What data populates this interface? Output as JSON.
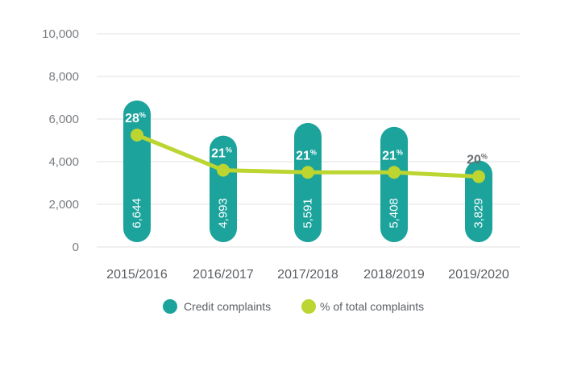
{
  "chart_data": {
    "type": "bar",
    "categories": [
      "2015/2016",
      "2016/2017",
      "2017/2018",
      "2018/2019",
      "2019/2020"
    ],
    "series": [
      {
        "name": "Credit complaints",
        "kind": "bar",
        "axis": "left",
        "values": [
          6644,
          4993,
          5591,
          5408,
          3829
        ],
        "labels": [
          "6,644",
          "4,993",
          "5,591",
          "5,408",
          "3,829"
        ]
      },
      {
        "name": "% of total complaints",
        "kind": "line",
        "values": [
          28,
          21,
          21,
          21,
          20
        ],
        "labels": [
          "28",
          "21",
          "21",
          "21",
          "20"
        ],
        "unit": "%"
      }
    ],
    "line_plot_values": [
      5250,
      3600,
      3500,
      3500,
      3300
    ],
    "ylim": [
      0,
      10000
    ],
    "yticks": [
      0,
      2000,
      4000,
      6000,
      8000,
      10000
    ],
    "ytick_labels": [
      "0",
      "2,000",
      "4,000",
      "6,000",
      "8,000",
      "10,000"
    ],
    "grid": true,
    "legend_position": "bottom-center",
    "title": "",
    "xlabel": "",
    "ylabel": ""
  },
  "legend": {
    "items": [
      "Credit complaints",
      "% of total complaints"
    ]
  },
  "colors": {
    "bar": "#1ba39c",
    "line": "#bcd531",
    "grid": "#e2e2e2",
    "pct_inside": "#ffffff",
    "pct_outside": "#6b6f73"
  }
}
